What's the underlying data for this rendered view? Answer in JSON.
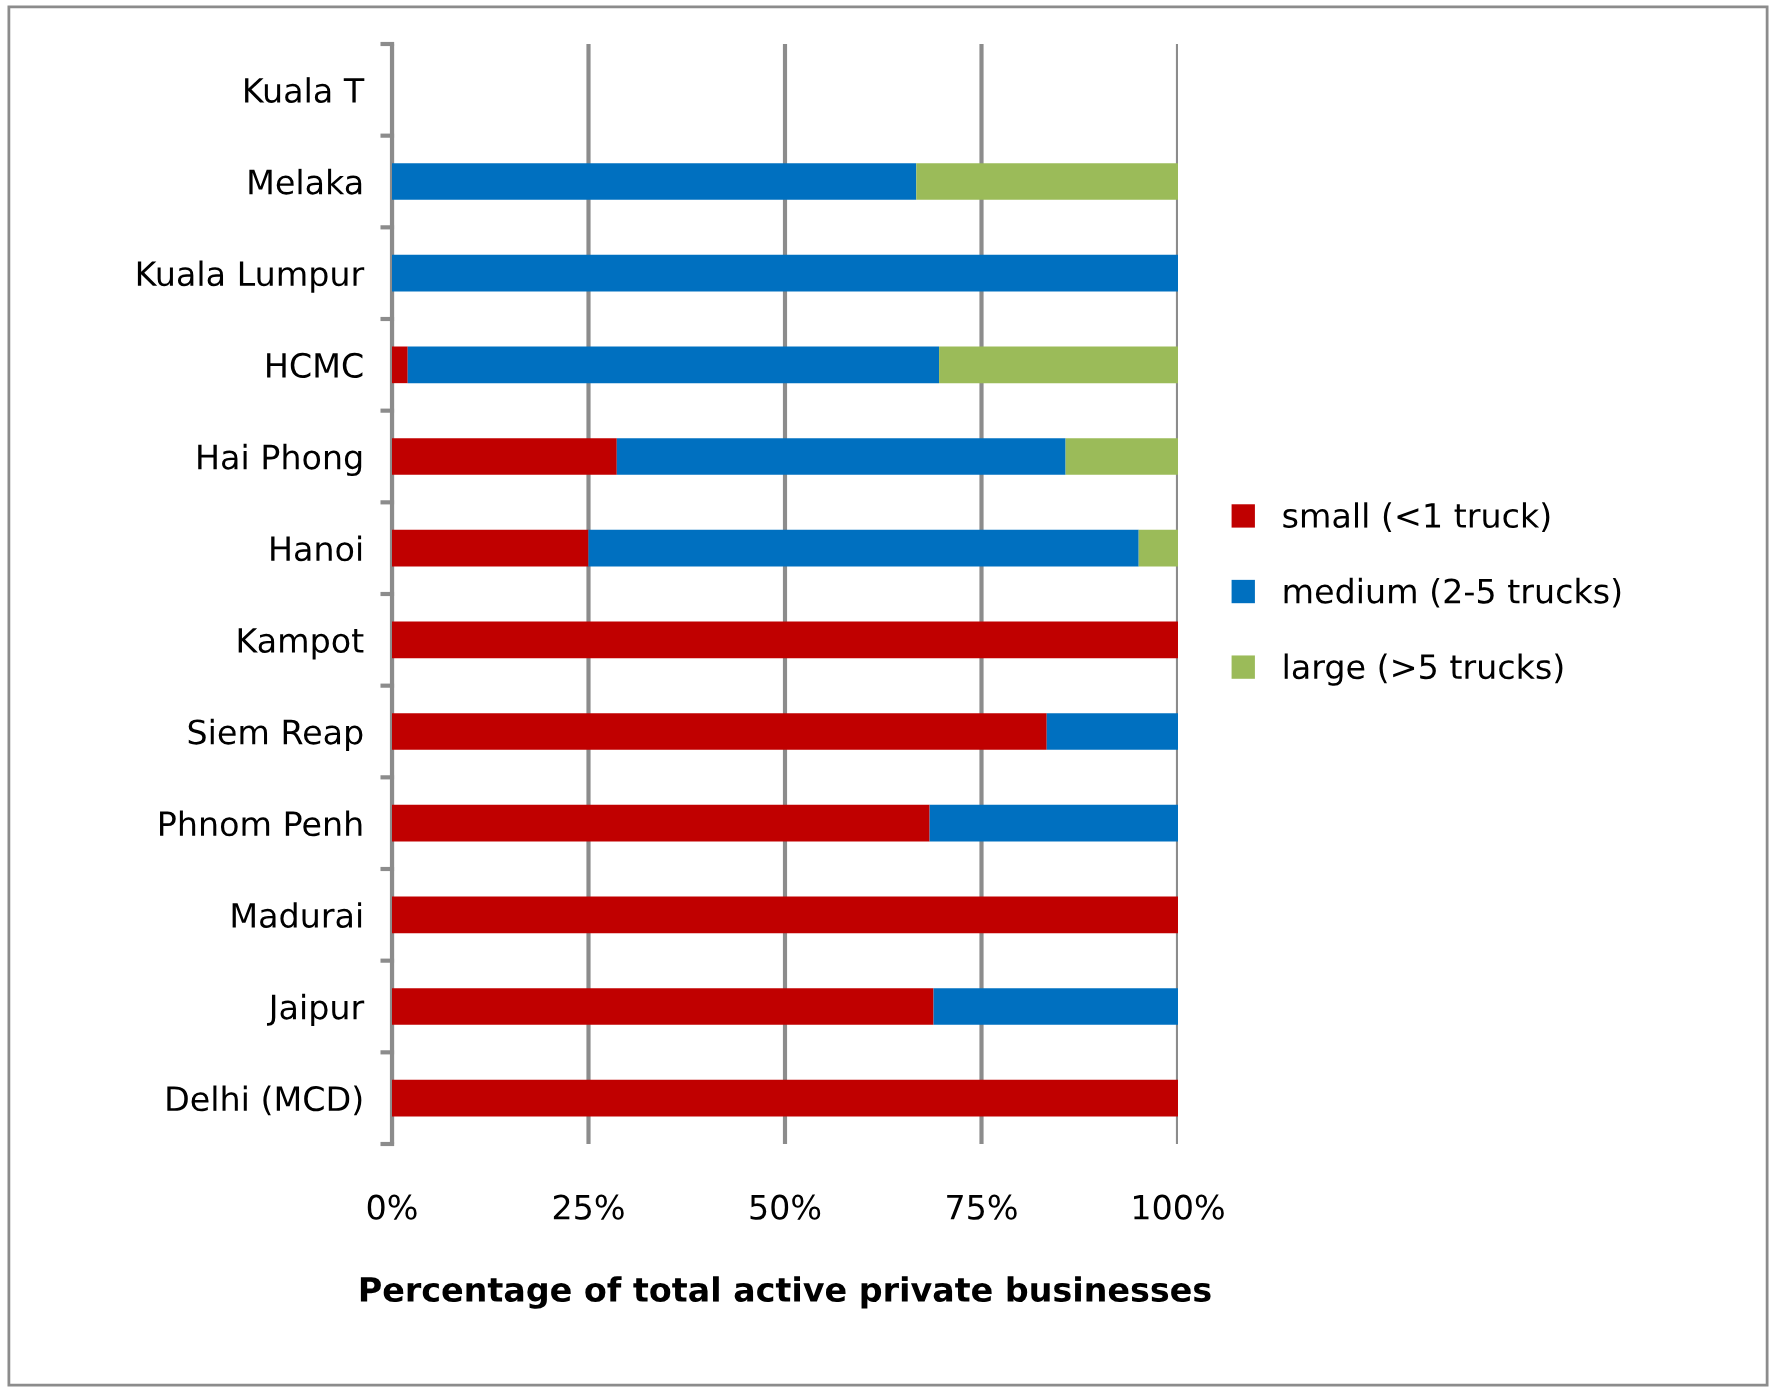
{
  "chart_data": {
    "type": "bar",
    "orientation": "horizontal",
    "stacked": true,
    "categories": [
      "Kuala T",
      "Melaka",
      "Kuala Lumpur",
      "HCMC",
      "Hai Phong",
      "Hanoi",
      "Kampot",
      "Siem Reap",
      "Phnom Penh",
      "Madurai",
      "Jaipur",
      "Delhi (MCD)"
    ],
    "series": [
      {
        "name": "small (<1 truck)",
        "color": "#c00000",
        "values": [
          0,
          0,
          0,
          2.0,
          28.6,
          25,
          100,
          83.3,
          68.4,
          100,
          68.9,
          100
        ]
      },
      {
        "name": "medium (2-5 trucks)",
        "color": "#0070c0",
        "values": [
          0,
          66.7,
          100,
          67.6,
          57.1,
          70,
          0,
          16.7,
          31.6,
          0,
          31.1,
          0
        ]
      },
      {
        "name": "large (>5 trucks)",
        "color": "#9bbb59",
        "values": [
          0,
          33.3,
          0,
          30.4,
          14.3,
          5,
          0,
          0,
          0,
          0,
          0,
          0
        ]
      }
    ],
    "xlabel": "Percentage of total active private businesses",
    "xlim": [
      0,
      100
    ],
    "xticks": [
      {
        "value": 0,
        "label": "0%"
      },
      {
        "value": 25,
        "label": "25%"
      },
      {
        "value": 50,
        "label": "50%"
      },
      {
        "value": 75,
        "label": "75%"
      },
      {
        "value": 100,
        "label": "100%"
      }
    ],
    "grid": "x",
    "legend": "right"
  }
}
